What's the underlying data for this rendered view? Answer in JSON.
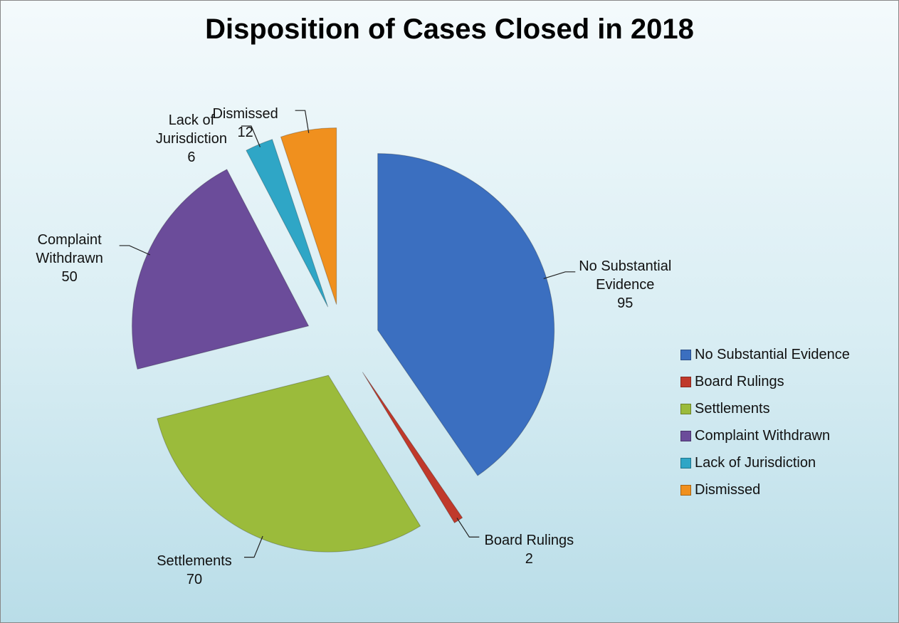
{
  "chart_data": {
    "type": "pie",
    "title": "Disposition of Cases Closed in 2018",
    "categories": [
      "No Substantial Evidence",
      "Board Rulings",
      "Settlements",
      "Complaint Withdrawn",
      "Lack of Jurisdiction",
      "Dismissed"
    ],
    "values": [
      95,
      2,
      70,
      50,
      6,
      12
    ],
    "colors": [
      "#3b6fc0",
      "#c0392b",
      "#9bbb3b",
      "#6b4c9a",
      "#2fa6c6",
      "#f0901e"
    ],
    "legend": "right"
  }
}
